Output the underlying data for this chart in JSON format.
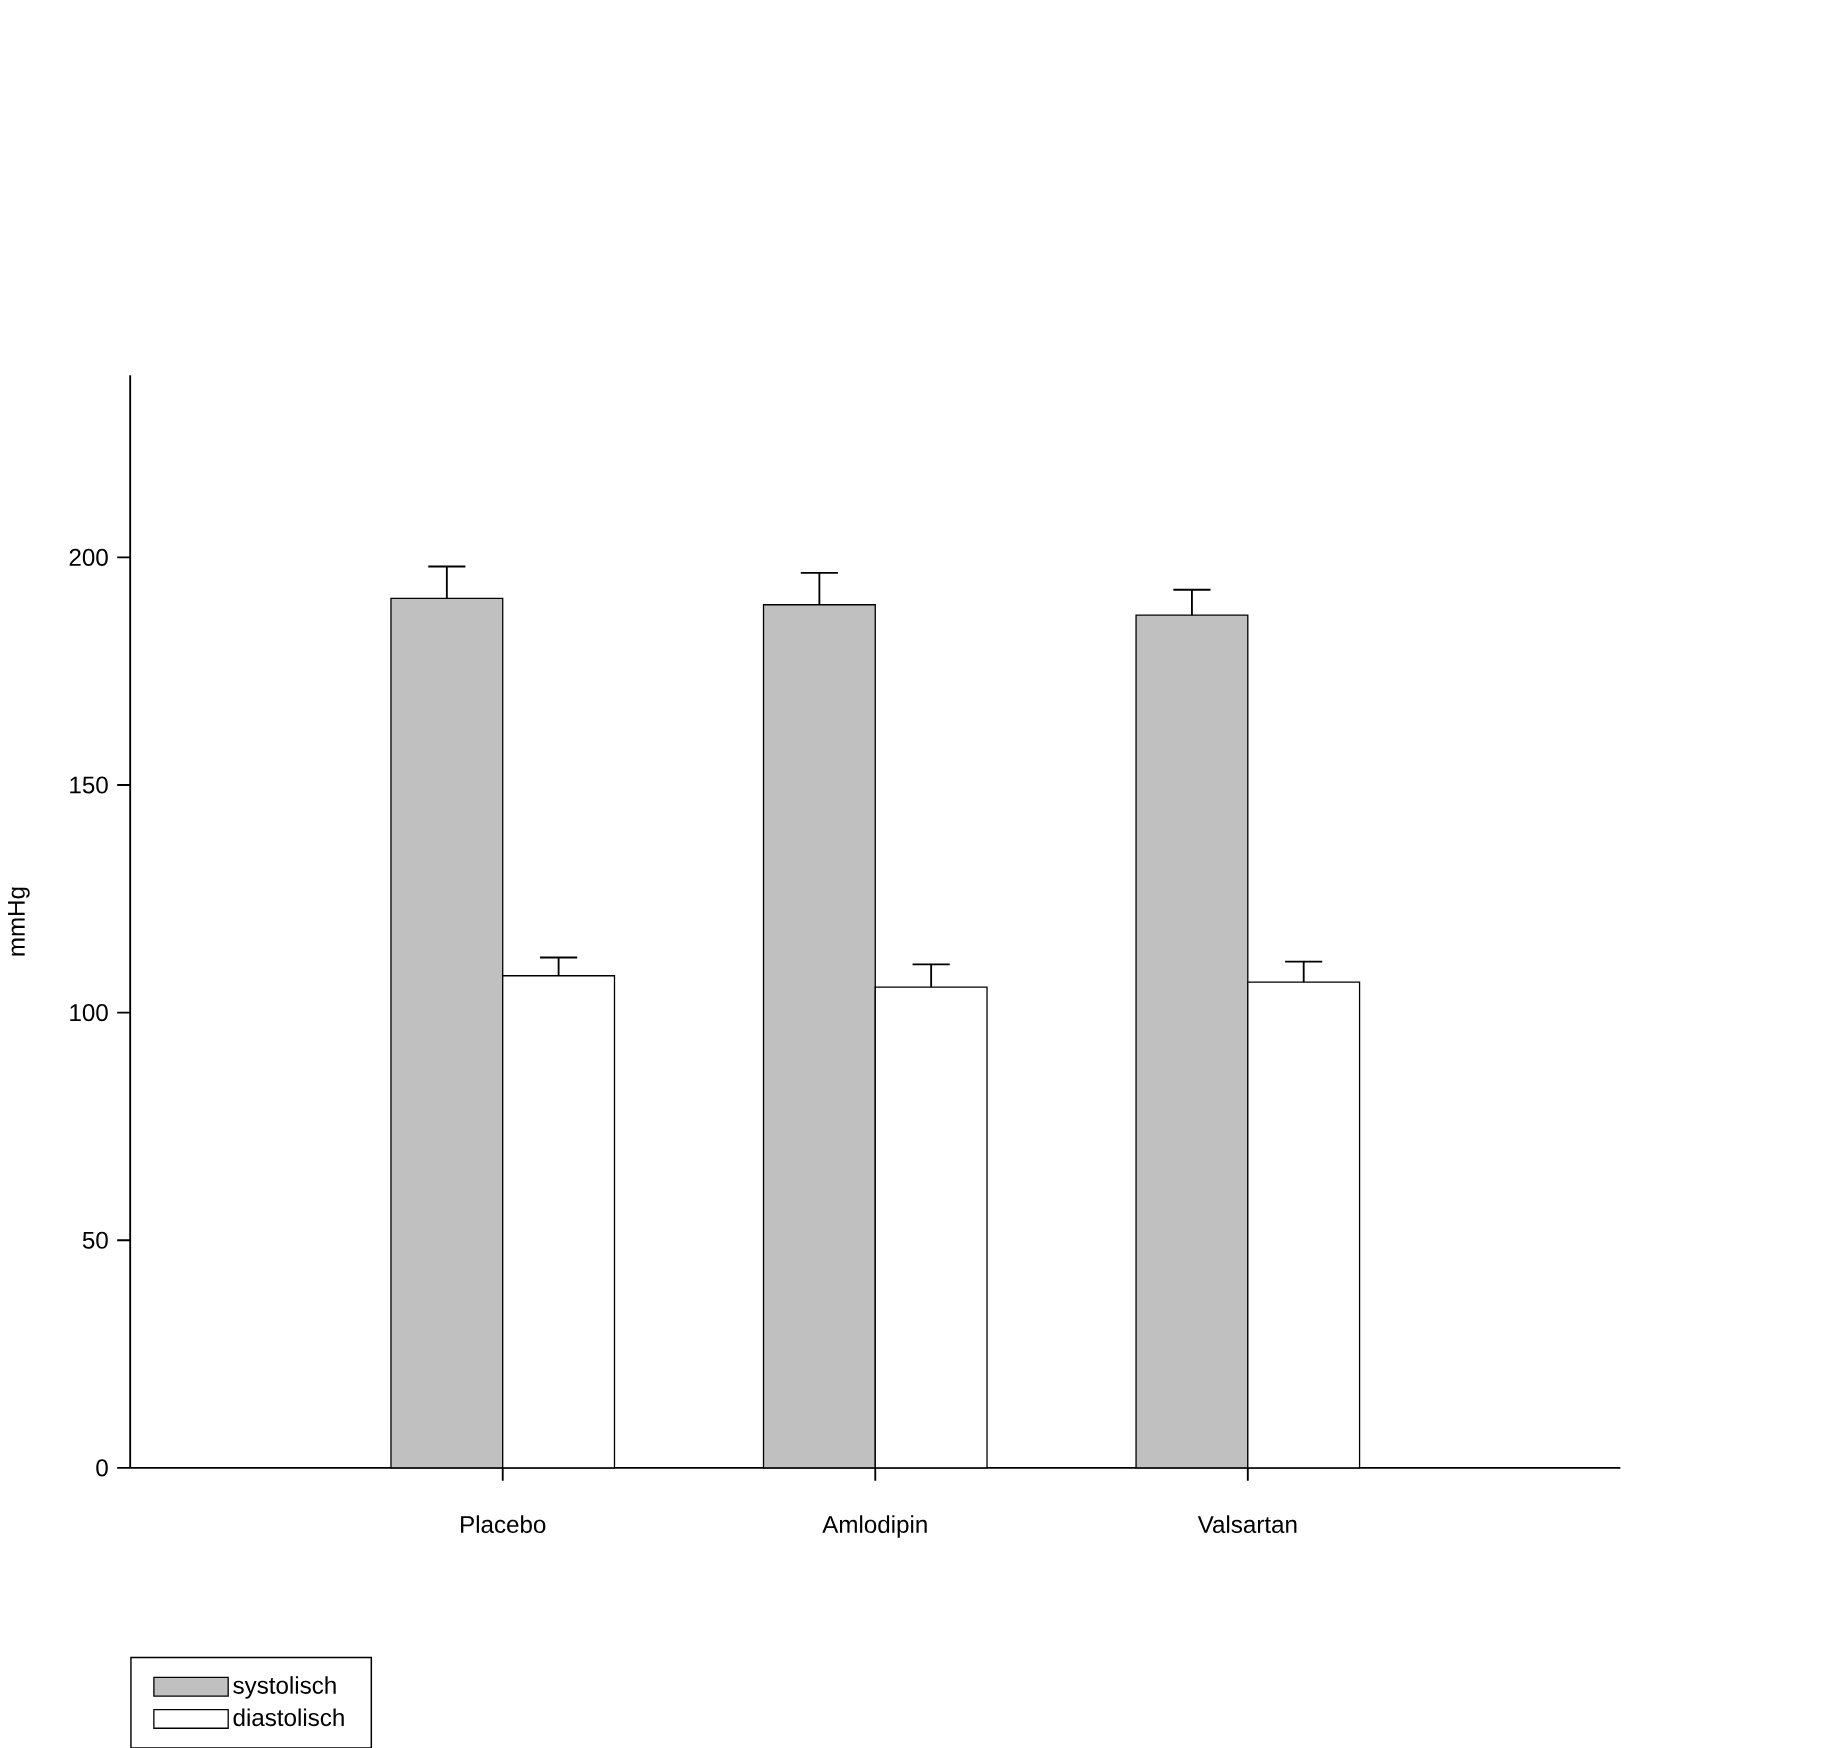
{
  "chart_data": {
    "type": "bar",
    "ylabel": "mmHg",
    "categories": [
      "Placebo",
      "Amlodipin",
      "Valsartan"
    ],
    "series": [
      {
        "name": "systolisch",
        "color": "#c0c0c0",
        "values": [
          191,
          189.6,
          187.3
        ],
        "errors": [
          7,
          7,
          5.6
        ]
      },
      {
        "name": "diastolisch",
        "color": "#ffffff",
        "values": [
          108.1,
          105.6,
          106.7
        ],
        "errors": [
          4,
          5,
          4.5
        ]
      }
    ],
    "ylim": [
      0,
      240
    ],
    "yticks": [
      0,
      50,
      100,
      150,
      200
    ],
    "legend": "bottom left"
  }
}
